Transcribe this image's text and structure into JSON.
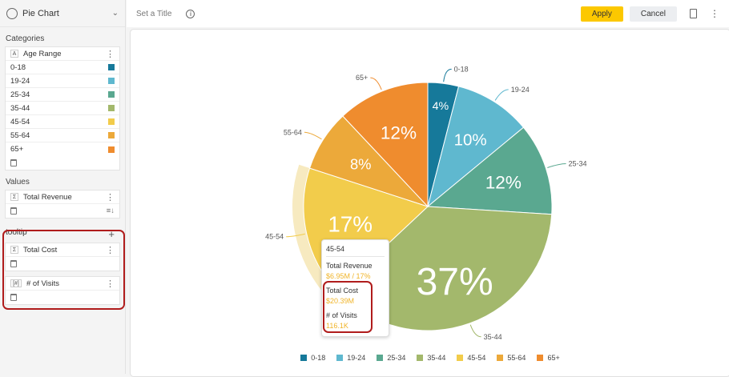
{
  "sidebar": {
    "chart_type": "Pie Chart",
    "categories_label": "Categories",
    "category_field": "Age Range",
    "categories": [
      {
        "label": "0-18",
        "color": "#16799a"
      },
      {
        "label": "19-24",
        "color": "#5fb8cf"
      },
      {
        "label": "25-34",
        "color": "#5aa890"
      },
      {
        "label": "35-44",
        "color": "#a3b86c"
      },
      {
        "label": "45-54",
        "color": "#f2cc4b"
      },
      {
        "label": "55-64",
        "color": "#eca93a"
      },
      {
        "label": "65+",
        "color": "#ef8c2e"
      }
    ],
    "values_label": "Values",
    "value_field": "Total Revenue",
    "tooltip_label": "tooltip",
    "tooltip_fields": [
      {
        "tag": "Σ",
        "label": "Total Cost"
      },
      {
        "tag": "[#]",
        "label": "# of Visits"
      }
    ]
  },
  "topbar": {
    "title_placeholder": "Set a Title",
    "apply": "Apply",
    "cancel": "Cancel"
  },
  "chart_data": {
    "type": "pie",
    "categories": [
      "0-18",
      "19-24",
      "25-34",
      "35-44",
      "45-54",
      "55-64",
      "65+"
    ],
    "values": [
      4,
      10,
      12,
      37,
      17,
      8,
      12
    ],
    "labels": [
      "4%",
      "10%",
      "12%",
      "37%",
      "17%",
      "8%",
      "12%"
    ],
    "highlighted": "45-54"
  },
  "tooltip": {
    "category": "45-54",
    "metric1": "Total Revenue",
    "value1": "$6.95M  / 17%",
    "metric2": "Total Cost",
    "value2": "$20.39M",
    "metric3": "# of Visits",
    "value3": "116.1K"
  }
}
